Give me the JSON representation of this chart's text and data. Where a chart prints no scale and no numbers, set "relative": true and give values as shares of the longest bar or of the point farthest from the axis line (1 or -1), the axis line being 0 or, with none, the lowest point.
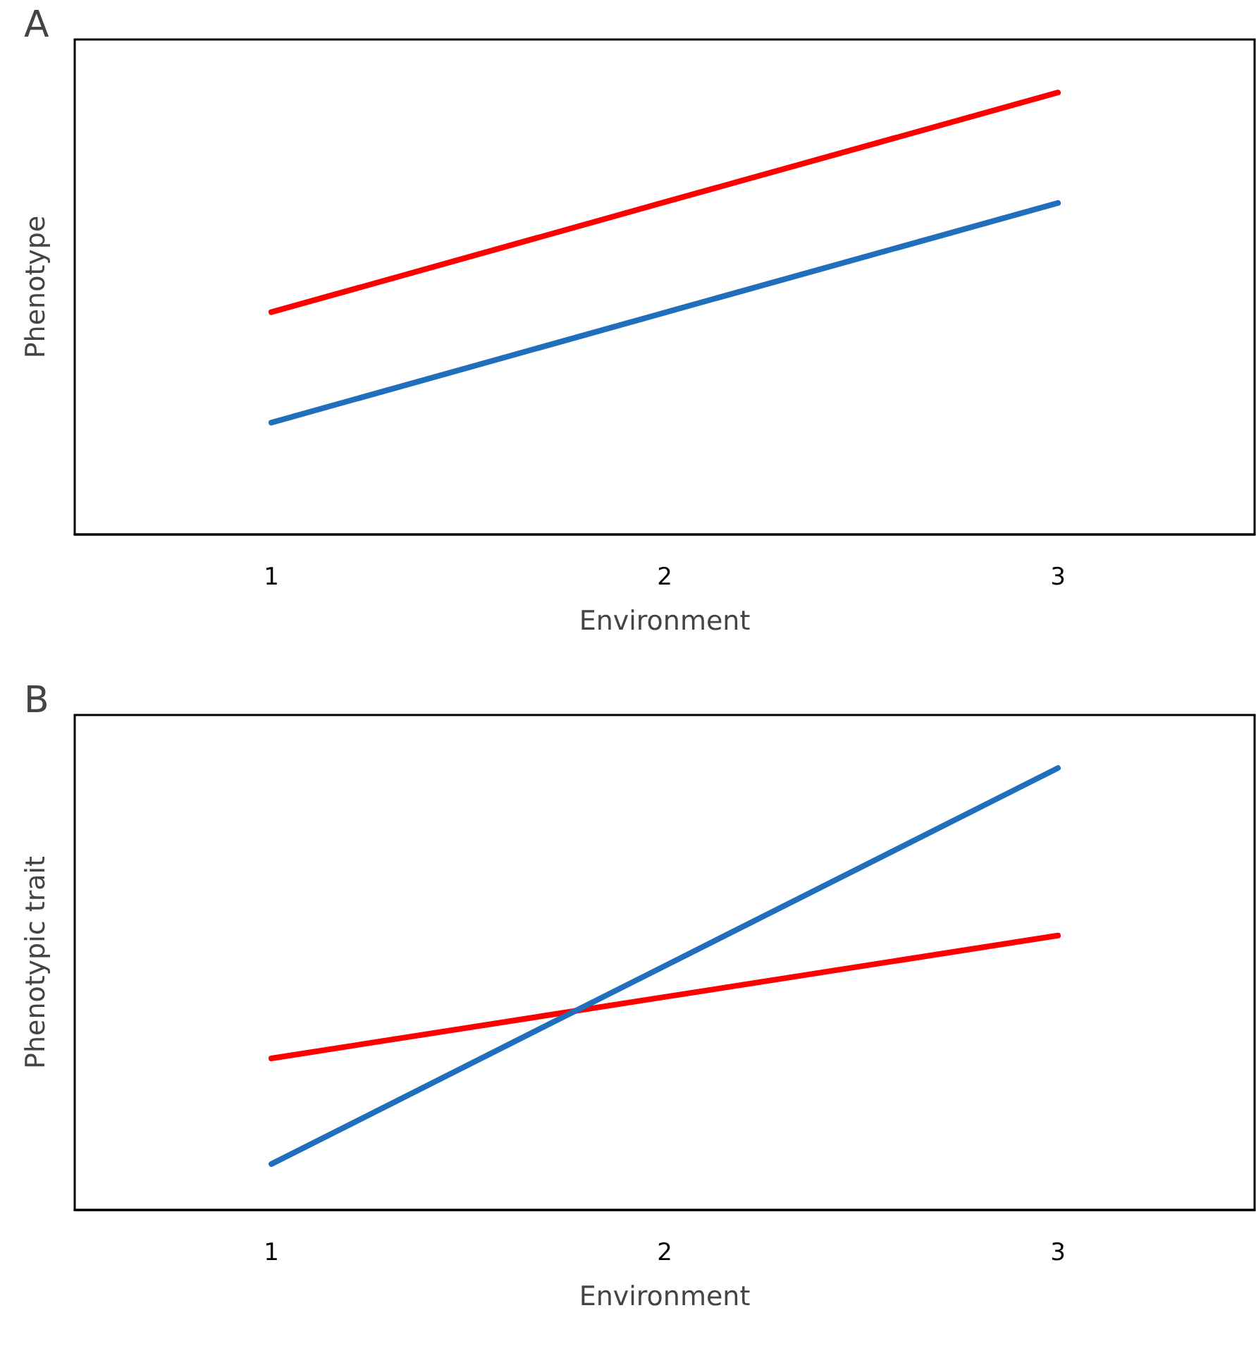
{
  "chart_data": [
    {
      "type": "line",
      "title": "A",
      "xlabel": "Environment",
      "ylabel": "Phenotype",
      "categories": [
        "1",
        "2",
        "3"
      ],
      "relative": true,
      "tick_labels": "x",
      "grid": false,
      "marker": "none",
      "line_style": "solid",
      "series": [
        {
          "color": "#ff0000",
          "values": [
            0.503,
            0.752,
            1
          ]
        },
        {
          "color": "#1f6fbd",
          "values": [
            0.253,
            0.502,
            0.75
          ]
        }
      ]
    },
    {
      "type": "line",
      "title": "B",
      "xlabel": "Environment",
      "ylabel": "Phenotypic trait",
      "categories": [
        "1",
        "2",
        "3"
      ],
      "relative": true,
      "tick_labels": "x",
      "grid": false,
      "marker": "none",
      "line_style": "solid",
      "series": [
        {
          "color": "#ff0000",
          "values": [
            0.343,
            0.482,
            0.621
          ]
        },
        {
          "color": "#1f6fbd",
          "values": [
            0.104,
            0.552,
            1
          ]
        }
      ]
    }
  ]
}
